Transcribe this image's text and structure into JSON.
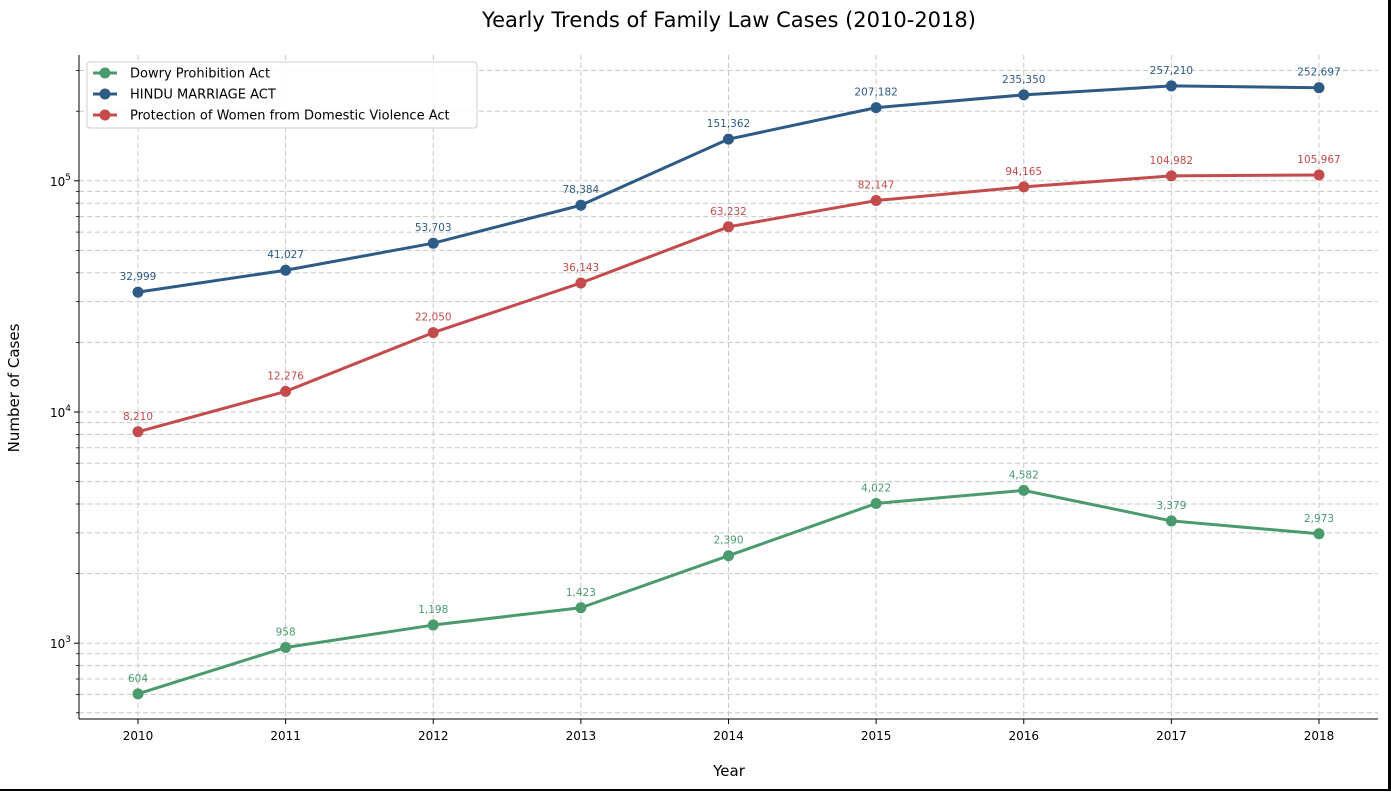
{
  "chart_data": {
    "type": "line",
    "title": "Yearly Trends of Family Law Cases (2010-2018)",
    "xlabel": "Year",
    "ylabel": "Number of Cases",
    "yscale": "log",
    "ylim": [
      470,
      350000
    ],
    "x": [
      2010,
      2011,
      2012,
      2013,
      2014,
      2015,
      2016,
      2017,
      2018
    ],
    "x_tick_labels": [
      "2010",
      "2011",
      "2012",
      "2013",
      "2014",
      "2015",
      "2016",
      "2017",
      "2018"
    ],
    "y_ticks": [
      1000,
      10000,
      100000
    ],
    "y_tick_labels": [
      {
        "base": "10",
        "exp": "3"
      },
      {
        "base": "10",
        "exp": "4"
      },
      {
        "base": "10",
        "exp": "5"
      }
    ],
    "grid": true,
    "legend_position": "top-left",
    "series": [
      {
        "name": "Dowry Prohibition Act",
        "color": "#4a9a6e",
        "values": [
          604,
          958,
          1198,
          1423,
          2390,
          4022,
          4582,
          3379,
          2973
        ],
        "labels": [
          "604",
          "958",
          "1,198",
          "1,423",
          "2,390",
          "4,022",
          "4,582",
          "3,379",
          "2,973"
        ]
      },
      {
        "name": "HINDU MARRIAGE ACT",
        "color": "#2e5b85",
        "values": [
          32999,
          41027,
          53703,
          78384,
          151362,
          207182,
          235350,
          257210,
          252697
        ],
        "labels": [
          "32,999",
          "41,027",
          "53,703",
          "78,384",
          "151,362",
          "207,182",
          "235,350",
          "257,210",
          "252,697"
        ]
      },
      {
        "name": "Protection of Women from Domestic Violence Act",
        "color": "#c44b4b",
        "values": [
          8210,
          12276,
          22050,
          36143,
          63232,
          82147,
          94165,
          104982,
          105967
        ],
        "labels": [
          "8,210",
          "12,276",
          "22,050",
          "36,143",
          "63,232",
          "82,147",
          "94,165",
          "104,982",
          "105,967"
        ]
      }
    ]
  }
}
